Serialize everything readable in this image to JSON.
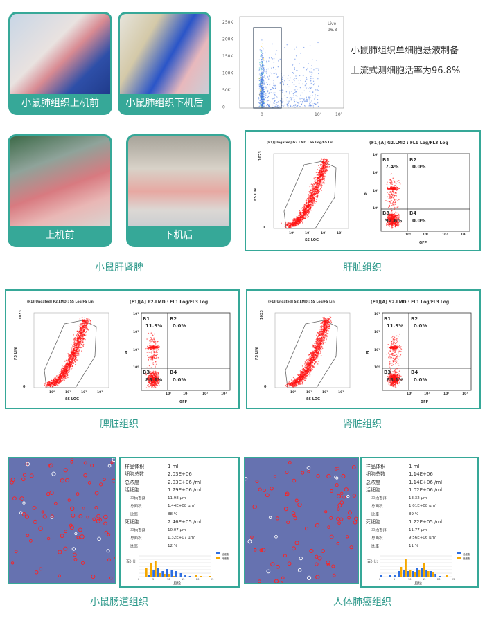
{
  "colors": {
    "accent": "#36a898",
    "caption": "#2f9a8c",
    "dot_red": "#ff1010",
    "dot_blue": "#2f6fe0"
  },
  "top": {
    "photo1_label": "小鼠肺组织上机前",
    "photo2_label": "小鼠肺组织下机后",
    "flow": {
      "y_ticks": [
        "250K",
        "200K",
        "150K",
        "100K",
        "50K",
        "0"
      ],
      "x_ticks": [
        "0",
        "10⁴",
        "10⁵"
      ],
      "gate_label": "Live",
      "gate_value": "96.8"
    },
    "desc_line1": "小鼠肺组织单细胞悬液制备",
    "desc_line2": "上流式测细胞活率为96.8%"
  },
  "row2": {
    "photo1_label": "上机前",
    "photo2_label": "下机后",
    "caption": "小鼠肝肾脾"
  },
  "panels": [
    {
      "caption": "肝脏组织",
      "scatter_title": "(F1)[Ungated] G2.LMD : SS Log/FS Lin",
      "quad_title": "(F1)[A] G2.LMD : FL1 Log/FL3 Log",
      "B1": "7.4%",
      "B2": "0.0%",
      "B3": "92.6%",
      "B4": "0.0%"
    },
    {
      "caption": "脾脏组织",
      "scatter_title": "(F1)[Ungated] P2.LMD : SS Log/FS Lin",
      "quad_title": "(F1)[A] P2.LMD : FL1 Log/FL3 Log",
      "B1": "11.9%",
      "B2": "0.0%",
      "B3": "88.1%",
      "B4": "0.0%"
    },
    {
      "caption": "肾脏组织",
      "scatter_title": "(F1)[Ungated] S2.LMD : SS Log/FS Lin",
      "quad_title": "(F1)[A] S2.LMD : FL1 Log/FL3 Log",
      "B1": "11.9%",
      "B2": "0.0%",
      "B3": "88.1%",
      "B4": "0.0%"
    }
  ],
  "flow_labels": {
    "fs_axis": "FS LIN",
    "ss_axis": "SS LOG",
    "pi_axis": "PI",
    "gfp_axis": "GFP",
    "y_top": "1023",
    "y_zero": "0",
    "log_ticks": [
      "10⁰",
      "10¹",
      "10²",
      "10³"
    ],
    "q1": "B1",
    "q2": "B2",
    "q3": "B3",
    "q4": "B4"
  },
  "counts": [
    {
      "caption": "小鼠肠道组织",
      "rows": [
        {
          "k": "样品体积",
          "v": "1 ml"
        },
        {
          "k": "细胞总数",
          "v": "2.03E+06"
        },
        {
          "k": "总浓度",
          "v": "2.03E+06 /ml"
        },
        {
          "k": "活细胞",
          "v": "1.79E+06 /ml"
        },
        {
          "k": "平均直径",
          "v": "11.98 μm",
          "sub": true
        },
        {
          "k": "总面积",
          "v": "1.44E+08 μm²",
          "sub": true
        },
        {
          "k": "比率",
          "v": "88 %",
          "sub": true
        },
        {
          "k": "死细胞",
          "v": "2.46E+05 /ml"
        },
        {
          "k": "平均直径",
          "v": "10.07 μm",
          "sub": true
        },
        {
          "k": "总面积",
          "v": "1.32E+07 μm²",
          "sub": true
        },
        {
          "k": "比率",
          "v": "12 %",
          "sub": true
        }
      ],
      "live": [
        0,
        0,
        3,
        10,
        13,
        8,
        11,
        9,
        8,
        5,
        3,
        1,
        0,
        0,
        0,
        0
      ],
      "dead": [
        0,
        12,
        20,
        22,
        5,
        4,
        4,
        1,
        0,
        0,
        0,
        0,
        2,
        1,
        0,
        1
      ]
    },
    {
      "caption": "人体肺癌组织",
      "rows": [
        {
          "k": "样品体积",
          "v": "1 ml"
        },
        {
          "k": "细胞总数",
          "v": "1.14E+06"
        },
        {
          "k": "总浓度",
          "v": "1.14E+06 /ml"
        },
        {
          "k": "活细胞",
          "v": "1.02E+06 /ml"
        },
        {
          "k": "平均直径",
          "v": "13.32 μm",
          "sub": true
        },
        {
          "k": "总面积",
          "v": "1.01E+08 μm²",
          "sub": true
        },
        {
          "k": "比率",
          "v": "89 %",
          "sub": true
        },
        {
          "k": "死细胞",
          "v": "1.22E+05 /ml"
        },
        {
          "k": "平均直径",
          "v": "11.77 μm",
          "sub": true
        },
        {
          "k": "总面积",
          "v": "9.56E+06 μm²",
          "sub": true
        },
        {
          "k": "比率",
          "v": "11 %",
          "sub": true
        }
      ],
      "live": [
        2,
        0,
        3,
        3,
        8,
        10,
        8,
        8,
        12,
        12,
        10,
        8,
        4,
        1,
        0,
        0
      ],
      "dead": [
        0,
        0,
        0,
        0,
        14,
        26,
        10,
        6,
        10,
        20,
        8,
        6,
        0,
        0,
        2,
        0
      ]
    }
  ],
  "hist": {
    "ylabel": "百分比",
    "xlabel": "直径",
    "legend_live": "活细胞",
    "legend_dead": "死细胞",
    "x_ticks": [
      "0",
      "5",
      "10",
      "15",
      "20",
      "25"
    ]
  }
}
